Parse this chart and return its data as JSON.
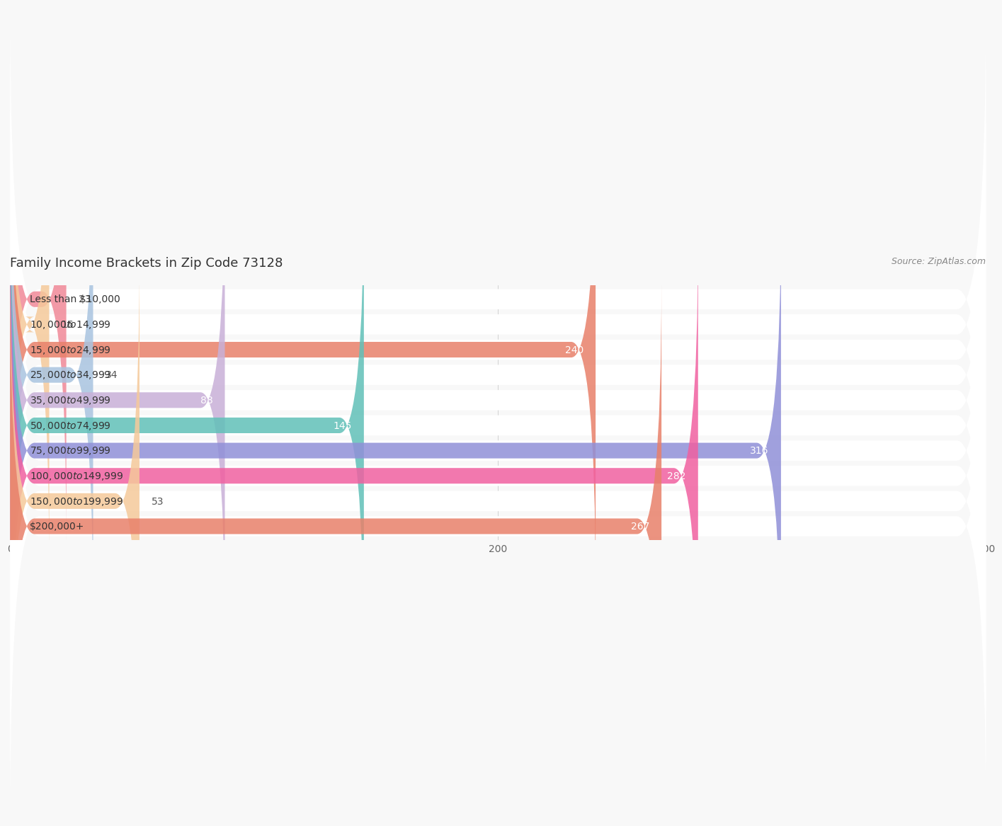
{
  "title": "Family Income Brackets in Zip Code 73128",
  "source": "Source: ZipAtlas.com",
  "categories": [
    "Less than $10,000",
    "$10,000 to $14,999",
    "$15,000 to $24,999",
    "$25,000 to $34,999",
    "$35,000 to $49,999",
    "$50,000 to $74,999",
    "$75,000 to $99,999",
    "$100,000 to $149,999",
    "$150,000 to $199,999",
    "$200,000+"
  ],
  "values": [
    23,
    16,
    240,
    34,
    88,
    145,
    316,
    282,
    53,
    267
  ],
  "bar_colors": [
    "#f08898",
    "#f5c99a",
    "#e8806a",
    "#a8c4e0",
    "#c8b0d8",
    "#60c0b8",
    "#9090d8",
    "#f060a0",
    "#f5c99a",
    "#e8806a"
  ],
  "bg_color": "#f8f8f8",
  "bar_bg_color": "#ebebeb",
  "row_bg_color": "#ffffff",
  "xlim": [
    0,
    400
  ],
  "xticks": [
    0,
    200,
    400
  ],
  "title_fontsize": 13,
  "label_fontsize": 10,
  "value_fontsize": 10
}
